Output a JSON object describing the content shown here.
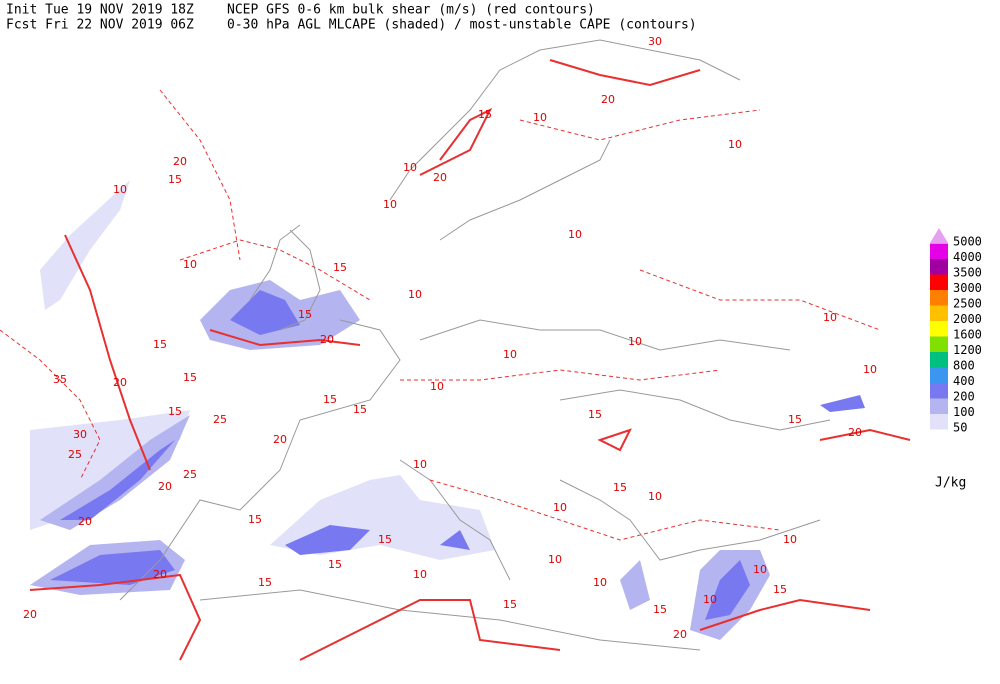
{
  "header": {
    "init": "Init  Tue 19 NOV 2019 18Z",
    "fcst": "Fcst Fri 22 NOV 2019 06Z",
    "title_line1": "NCEP GFS 0-6 km bulk shear (m/s) (red contours)",
    "title_line2": "0-30 hPa AGL MLCAPE (shaded) / most-unstable CAPE (contours)"
  },
  "legend": {
    "levels": [
      5000,
      4000,
      3500,
      3000,
      2500,
      2000,
      1600,
      1200,
      800,
      400,
      200,
      100,
      50
    ],
    "colors": [
      "#e6a0f0",
      "#e600e6",
      "#a000a0",
      "#ff0000",
      "#ff8000",
      "#ffc000",
      "#ffff00",
      "#80e000",
      "#00c080",
      "#3c96f0",
      "#7878f0",
      "#b4b4f0",
      "#e1e1fa"
    ],
    "unit": "J/kg"
  },
  "contour_labels": [
    30,
    20,
    15,
    10,
    10,
    10,
    20,
    10,
    20,
    15,
    10,
    10,
    15,
    10,
    10,
    15,
    20,
    15,
    10,
    10,
    10,
    10,
    10,
    35,
    20,
    15,
    15,
    15,
    15,
    25,
    30,
    25,
    20,
    20,
    25,
    15,
    15,
    20,
    10,
    10,
    15,
    10,
    20,
    15,
    15,
    15,
    10,
    10,
    10,
    20,
    15,
    15,
    15,
    10,
    15,
    20,
    20,
    10,
    10
  ]
}
